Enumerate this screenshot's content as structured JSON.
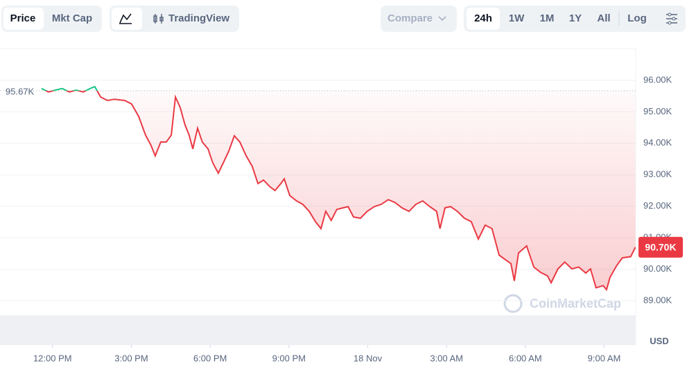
{
  "toolbar": {
    "tabs": [
      "Price",
      "Mkt Cap"
    ],
    "tradingview": "TradingView",
    "compare": "Compare",
    "ranges": [
      "24h",
      "1W",
      "1M",
      "1Y",
      "All"
    ],
    "log": "Log"
  },
  "chart_data": {
    "type": "line",
    "currency": "USD",
    "watermark": "CoinMarketCap",
    "color": "#ea3943",
    "up_color": "#16c784",
    "reference": {
      "value": 95670,
      "label": "95.67K"
    },
    "current_price": {
      "value": 90700,
      "label": "90.70K"
    },
    "x": [
      11.58,
      11.85,
      12.11,
      12.37,
      12.64,
      12.9,
      13.17,
      13.43,
      13.61,
      13.83,
      14.09,
      14.35,
      14.75,
      15.01,
      15.28,
      15.54,
      15.75,
      15.91,
      16.12,
      16.33,
      16.52,
      16.68,
      16.86,
      17.04,
      17.2,
      17.34,
      17.52,
      17.7,
      17.92,
      18.1,
      18.31,
      18.5,
      18.71,
      18.92,
      19.13,
      19.37,
      19.6,
      19.82,
      20.03,
      20.29,
      20.47,
      20.69,
      20.82,
      21.03,
      21.29,
      21.53,
      21.77,
      22.01,
      22.22,
      22.4,
      22.61,
      22.82,
      23.06,
      23.25,
      23.46,
      23.72,
      23.98,
      24.25,
      24.51,
      24.78,
      25.04,
      25.3,
      25.57,
      25.83,
      26.09,
      26.36,
      26.62,
      26.75,
      26.94,
      27.15,
      27.41,
      27.68,
      27.94,
      28.21,
      28.47,
      28.73,
      29,
      29.26,
      29.45,
      29.58,
      29.74,
      30.05,
      30.32,
      30.58,
      30.84,
      30.98,
      31.24,
      31.5,
      31.77,
      32.03,
      32.3,
      32.48,
      32.69,
      32.96,
      33.09,
      33.22,
      33.48,
      33.69,
      34.01,
      34.19
    ],
    "values": [
      95740,
      95630,
      95690,
      95740,
      95630,
      95690,
      95630,
      95740,
      95800,
      95470,
      95360,
      95400,
      95360,
      95250,
      94850,
      94260,
      93930,
      93600,
      94040,
      94040,
      94260,
      95470,
      95140,
      94590,
      94260,
      93820,
      94480,
      94040,
      93820,
      93380,
      93050,
      93380,
      93750,
      94240,
      94040,
      93600,
      93270,
      92720,
      92830,
      92610,
      92500,
      92720,
      92870,
      92340,
      92170,
      92060,
      91840,
      91510,
      91290,
      91840,
      91550,
      91900,
      91950,
      91990,
      91660,
      91620,
      91840,
      91990,
      92060,
      92210,
      92120,
      91950,
      91840,
      92060,
      92170,
      91990,
      91840,
      91290,
      91950,
      91990,
      91840,
      91620,
      91510,
      90960,
      91400,
      91290,
      90450,
      90290,
      90180,
      89630,
      90520,
      90740,
      90070,
      89900,
      89790,
      89570,
      90010,
      90230,
      90010,
      90070,
      89880,
      90010,
      89410,
      89480,
      89350,
      89740,
      90120,
      90360,
      90400,
      90700
    ],
    "xlim": [
      10,
      34.2
    ],
    "xticks": [
      {
        "value": 12,
        "label": "12:00 PM"
      },
      {
        "value": 15,
        "label": "3:00 PM"
      },
      {
        "value": 18,
        "label": "6:00 PM"
      },
      {
        "value": 21,
        "label": "9:00 PM"
      },
      {
        "value": 24,
        "label": "18 Nov"
      },
      {
        "value": 27,
        "label": "3:00 AM"
      },
      {
        "value": 30,
        "label": "6:00 AM"
      },
      {
        "value": 33,
        "label": "9:00 AM"
      }
    ],
    "ylim": [
      87590,
      97010
    ],
    "yticks": [
      {
        "value": 89000,
        "label": "89.00K"
      },
      {
        "value": 90000,
        "label": "90.00K"
      },
      {
        "value": 91000,
        "label": "91.00K"
      },
      {
        "value": 92000,
        "label": "92.00K"
      },
      {
        "value": 93000,
        "label": "93.00K"
      },
      {
        "value": 94000,
        "label": "94.00K"
      },
      {
        "value": 95000,
        "label": "95.00K"
      },
      {
        "value": 96000,
        "label": "96.00K"
      }
    ],
    "grid": true
  }
}
